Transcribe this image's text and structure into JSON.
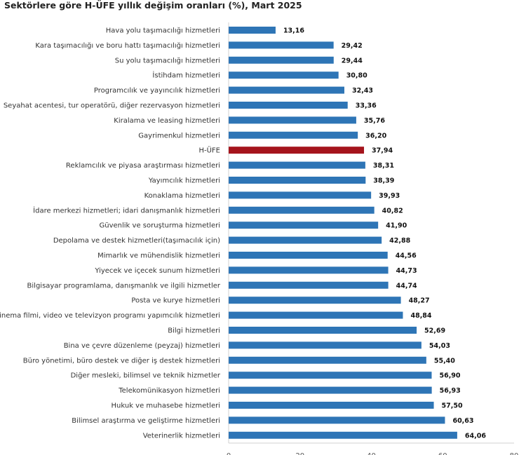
{
  "chart_data": {
    "type": "bar",
    "orientation": "horizontal",
    "title": "Sektörlere göre H-ÜFE yıllık değişim oranları (%), Mart 2025",
    "categories": [
      "Hava yolu taşımacılığı hizmetleri",
      "Kara taşımacılığı ve boru hattı taşımacılığı hizmetleri",
      "Su yolu taşımacılığı hizmetleri",
      "İstihdam hizmetleri",
      "Programcılık ve yayıncılık hizmetleri",
      "Seyahat acentesi, tur operatörü, diğer rezervasyon hizmetleri",
      "Kiralama ve leasing hizmetleri",
      "Gayrimenkul hizmetleri",
      "H-ÜFE",
      "Reklamcılık ve piyasa araştırması hizmetleri",
      "Yayımcılık hizmetleri",
      "Konaklama hizmetleri",
      "İdare merkezi hizmetleri; idari danışmanlık hizmetleri",
      "Güvenlik ve soruşturma hizmetleri",
      "Depolama ve destek hizmetleri(taşımacılık için)",
      "Mimarlık ve mühendislik hizmetleri",
      "Yiyecek ve içecek sunum hizmetleri",
      "Bilgisayar programlama, danışmanlık ve ilgili hizmetler",
      "Posta ve kurye hizmetleri",
      "Sinema filmi, video ve televizyon programı yapımcılık hizmetleri",
      "Bilgi hizmetleri",
      "Bina ve çevre düzenleme (peyzaj) hizmetleri",
      "Büro yönetimi, büro destek ve diğer iş destek hizmetleri",
      "Diğer mesleki, bilimsel ve teknik hizmetler",
      "Telekomünikasyon hizmetleri",
      "Hukuk ve muhasebe hizmetleri",
      "Bilimsel araştırma ve geliştirme hizmetleri",
      "Veterinerlik hizmetleri"
    ],
    "values": [
      13.16,
      29.42,
      29.44,
      30.8,
      32.43,
      33.36,
      35.76,
      36.2,
      37.94,
      38.31,
      38.39,
      39.93,
      40.82,
      41.9,
      42.88,
      44.56,
      44.73,
      44.74,
      48.27,
      48.84,
      52.69,
      54.03,
      55.4,
      56.9,
      56.93,
      57.5,
      60.63,
      64.06
    ],
    "value_labels": [
      "13,16",
      "29,42",
      "29,44",
      "30,80",
      "32,43",
      "33,36",
      "35,76",
      "36,20",
      "37,94",
      "38,31",
      "38,39",
      "39,93",
      "40,82",
      "41,90",
      "42,88",
      "44,56",
      "44,73",
      "44,74",
      "48,27",
      "48,84",
      "52,69",
      "54,03",
      "55,40",
      "56,90",
      "56,93",
      "57,50",
      "60,63",
      "64,06"
    ],
    "highlight": "H-ÜFE",
    "xlim": [
      0,
      80
    ],
    "xticks": [
      "0",
      "20",
      "40",
      "60",
      "80"
    ],
    "grid": false,
    "colors": {
      "bar": "#2e75b6",
      "highlight": "#a5141c"
    }
  }
}
